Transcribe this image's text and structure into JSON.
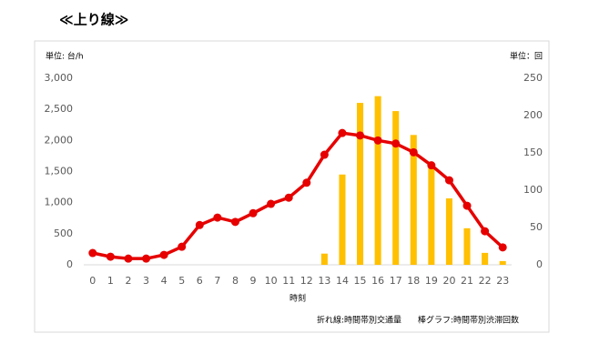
{
  "chart_data": {
    "type": "bar+line",
    "title": "≪上り線≫",
    "y_unit_label": "単位: 台/h",
    "y2_unit_label": "単位：回",
    "x_label": "時刻",
    "annotations": [
      "折れ線:時間帯別交通量",
      "棒グラフ:時間帯別渋滞回数"
    ],
    "categories": [
      "0",
      "1",
      "2",
      "3",
      "4",
      "5",
      "6",
      "7",
      "8",
      "9",
      "10",
      "11",
      "12",
      "13",
      "14",
      "15",
      "16",
      "17",
      "18",
      "19",
      "20",
      "21",
      "22",
      "23"
    ],
    "series": [
      {
        "name": "時間帯別渋滞回数",
        "type": "bar",
        "axis": "y2",
        "color": "#ffc000",
        "values": [
          0,
          0,
          0,
          0,
          0,
          0,
          0,
          0,
          0,
          0,
          0,
          0,
          0,
          15,
          121,
          217,
          226,
          206,
          174,
          132,
          89,
          49,
          16,
          5
        ]
      },
      {
        "name": "時間帯別交通量",
        "type": "line",
        "axis": "y",
        "color": "#e60000",
        "values": [
          190,
          130,
          100,
          100,
          160,
          290,
          640,
          760,
          690,
          830,
          980,
          1080,
          1320,
          1770,
          2120,
          2080,
          2000,
          1950,
          1810,
          1600,
          1360,
          950,
          540,
          280
        ]
      }
    ],
    "ylim": [
      0,
      3000
    ],
    "yticks": [
      0,
      500,
      {
        "value": 1000,
        "label": "1,000"
      },
      {
        "value": 1500,
        "label": "1,500"
      },
      {
        "value": 2000,
        "label": "2,000"
      },
      {
        "value": 2500,
        "label": "2,500"
      },
      {
        "value": 3000,
        "label": "3,000"
      }
    ],
    "y2lim": [
      0,
      250
    ],
    "y2ticks": [
      0,
      50,
      100,
      150,
      200,
      250
    ],
    "grid": false
  }
}
